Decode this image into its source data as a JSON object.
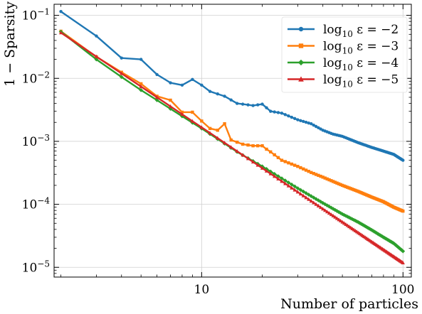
{
  "chart_data": {
    "type": "line",
    "title": "",
    "xlabel": "Number of particles",
    "ylabel": "1 − Sparsity",
    "xscale": "log",
    "yscale": "log",
    "xlim": [
      1.85,
      110
    ],
    "ylim": [
      7e-06,
      0.15
    ],
    "x_ticks": [
      {
        "value": 10,
        "label": "10"
      },
      {
        "value": 100,
        "label": "100"
      }
    ],
    "y_ticks": [
      {
        "value": 0.1,
        "base": "10",
        "exp": "−1"
      },
      {
        "value": 0.01,
        "base": "10",
        "exp": "−2"
      },
      {
        "value": 0.001,
        "base": "10",
        "exp": "−3"
      },
      {
        "value": 0.0001,
        "base": "10",
        "exp": "−4"
      },
      {
        "value": 1e-05,
        "base": "10",
        "exp": "−5"
      }
    ],
    "grid": true,
    "legend_position": "top-right",
    "x_range": [
      2,
      100
    ],
    "series": [
      {
        "name": "log₁₀ ε = −2",
        "legend": {
          "pre": "log",
          "sub": "10",
          "post": " ε = −2"
        },
        "color": "#1f77b4",
        "marker": "circle",
        "anchors": [
          [
            2,
            0.115
          ],
          [
            3,
            0.047
          ],
          [
            4,
            0.021
          ],
          [
            5,
            0.02
          ],
          [
            6,
            0.0115
          ],
          [
            7,
            0.0085
          ],
          [
            8,
            0.0078
          ],
          [
            9,
            0.0096
          ],
          [
            10,
            0.0078
          ],
          [
            11,
            0.0062
          ],
          [
            13,
            0.0052
          ],
          [
            15,
            0.004
          ],
          [
            18,
            0.0037
          ],
          [
            20,
            0.0039
          ],
          [
            22,
            0.003
          ],
          [
            25,
            0.0028
          ],
          [
            30,
            0.0022
          ],
          [
            35,
            0.0019
          ],
          [
            40,
            0.0015
          ],
          [
            45,
            0.0013
          ],
          [
            50,
            0.0012
          ],
          [
            60,
            0.00095
          ],
          [
            70,
            0.0008
          ],
          [
            80,
            0.0007
          ],
          [
            90,
            0.00062
          ],
          [
            100,
            0.0005
          ]
        ]
      },
      {
        "name": "log₁₀ ε = −3",
        "legend": {
          "pre": "log",
          "sub": "10",
          "post": " ε = −3"
        },
        "color": "#ff7f0e",
        "marker": "square",
        "anchors": [
          [
            2,
            0.056
          ],
          [
            3,
            0.022
          ],
          [
            4,
            0.0125
          ],
          [
            5,
            0.0082
          ],
          [
            6,
            0.0052
          ],
          [
            7,
            0.0045
          ],
          [
            8,
            0.0029
          ],
          [
            9,
            0.0029
          ],
          [
            10,
            0.0021
          ],
          [
            11,
            0.0016
          ],
          [
            12,
            0.0015
          ],
          [
            13,
            0.0019
          ],
          [
            14,
            0.00105
          ],
          [
            16,
            0.0009
          ],
          [
            18,
            0.00085
          ],
          [
            20,
            0.00085
          ],
          [
            21,
            0.00075
          ],
          [
            22,
            0.00068
          ],
          [
            25,
            0.0005
          ],
          [
            30,
            0.0004
          ],
          [
            35,
            0.00032
          ],
          [
            40,
            0.00027
          ],
          [
            50,
            0.0002
          ],
          [
            60,
            0.00016
          ],
          [
            70,
            0.00013
          ],
          [
            80,
            0.00011
          ],
          [
            90,
            9e-05
          ],
          [
            100,
            7.8e-05
          ]
        ]
      },
      {
        "name": "log₁₀ ε = −4",
        "legend": {
          "pre": "log",
          "sub": "10",
          "post": " ε = −4"
        },
        "color": "#2ca02c",
        "marker": "diamond",
        "anchors": [
          [
            2,
            0.055
          ],
          [
            3,
            0.02
          ],
          [
            4,
            0.0105
          ],
          [
            5,
            0.0065
          ],
          [
            6,
            0.0045
          ],
          [
            8,
            0.0025
          ],
          [
            10,
            0.0016
          ],
          [
            15,
            0.00068
          ],
          [
            20,
            0.0004
          ],
          [
            30,
            0.00018
          ],
          [
            40,
            0.000105
          ],
          [
            50,
            7e-05
          ],
          [
            60,
            5.2e-05
          ],
          [
            70,
            3.9e-05
          ],
          [
            80,
            3e-05
          ],
          [
            90,
            2.4e-05
          ],
          [
            100,
            1.8e-05
          ]
        ]
      },
      {
        "name": "log₁₀ ε = −5",
        "legend": {
          "pre": "log",
          "sub": "10",
          "post": " ε = −5"
        },
        "color": "#d62728",
        "marker": "triangle",
        "anchors": [
          [
            2,
            0.053
          ],
          [
            100,
            1.18e-05
          ]
        ]
      }
    ]
  }
}
